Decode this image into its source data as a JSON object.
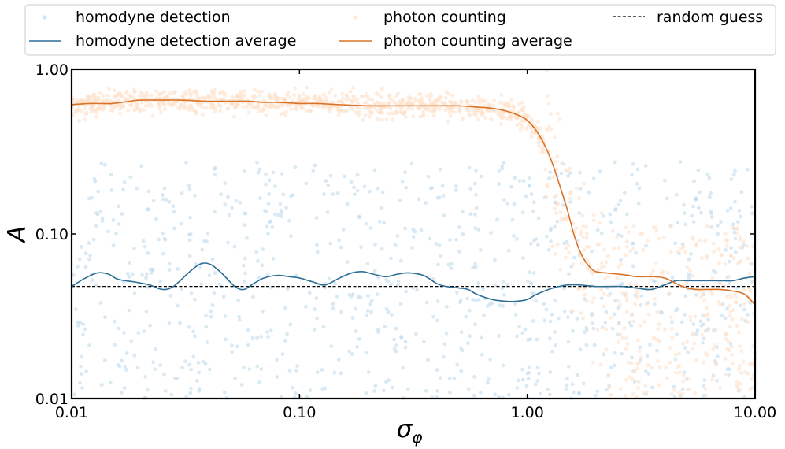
{
  "chart_data": {
    "type": "scatter",
    "xlabel": "σ",
    "xlabel_subscript": "φ",
    "ylabel": "A",
    "xscale": "log",
    "yscale": "log",
    "xlim": [
      0.01,
      10
    ],
    "ylim": [
      0.01,
      1
    ],
    "xticks": [
      {
        "value": 0.01,
        "label": "0.01"
      },
      {
        "value": 0.1,
        "label": "0.10"
      },
      {
        "value": 1,
        "label": "1.00"
      },
      {
        "value": 10,
        "label": "10.00"
      }
    ],
    "yticks": [
      {
        "value": 0.01,
        "label": "0.01"
      },
      {
        "value": 0.1,
        "label": "0.10"
      },
      {
        "value": 1,
        "label": "1.00"
      }
    ],
    "grid": false,
    "legend_position": "top, outside, 3 columns",
    "legend": [
      {
        "label": "homodyne detection",
        "kind": "scatter",
        "color": "#bcd8ec"
      },
      {
        "label": "photon counting",
        "kind": "scatter",
        "color": "#fde0c8"
      },
      {
        "label": "random guess",
        "kind": "dashed",
        "color": "#000000"
      },
      {
        "label": "homodyne detection average",
        "kind": "line",
        "color": "#2c6e96"
      },
      {
        "label": "photon counting average",
        "kind": "line",
        "color": "#d97327"
      }
    ],
    "series": [
      {
        "name": "homodyne detection average",
        "color": "#2c6e96",
        "x": [
          0.01,
          0.0115,
          0.013,
          0.0145,
          0.016,
          0.019,
          0.022,
          0.025,
          0.028,
          0.033,
          0.037,
          0.041,
          0.046,
          0.052,
          0.057,
          0.063,
          0.07,
          0.08,
          0.09,
          0.1,
          0.115,
          0.13,
          0.15,
          0.17,
          0.19,
          0.21,
          0.24,
          0.27,
          0.3,
          0.35,
          0.4,
          0.44,
          0.5,
          0.55,
          0.6,
          0.7,
          0.8,
          0.9,
          1.0,
          1.1,
          1.3,
          1.5,
          1.7,
          2.0,
          2.3,
          2.6,
          3.0,
          3.5,
          4.0,
          4.5,
          5.0,
          6.0,
          7.0,
          8.0,
          9.0,
          10.0
        ],
        "y": [
          0.048,
          0.054,
          0.058,
          0.057,
          0.053,
          0.051,
          0.049,
          0.046,
          0.048,
          0.059,
          0.066,
          0.065,
          0.057,
          0.048,
          0.046,
          0.05,
          0.054,
          0.056,
          0.055,
          0.054,
          0.051,
          0.049,
          0.054,
          0.058,
          0.059,
          0.057,
          0.055,
          0.057,
          0.058,
          0.056,
          0.05,
          0.048,
          0.047,
          0.046,
          0.043,
          0.04,
          0.039,
          0.039,
          0.04,
          0.043,
          0.047,
          0.049,
          0.049,
          0.048,
          0.048,
          0.048,
          0.047,
          0.046,
          0.049,
          0.052,
          0.052,
          0.052,
          0.052,
          0.052,
          0.054,
          0.055
        ]
      },
      {
        "name": "photon counting average",
        "color": "#d97327",
        "x": [
          0.01,
          0.012,
          0.015,
          0.018,
          0.02,
          0.025,
          0.03,
          0.04,
          0.05,
          0.06,
          0.07,
          0.08,
          0.1,
          0.12,
          0.15,
          0.2,
          0.25,
          0.3,
          0.4,
          0.5,
          0.6,
          0.7,
          0.8,
          0.9,
          1.0,
          1.1,
          1.2,
          1.3,
          1.4,
          1.5,
          1.6,
          1.7,
          1.8,
          1.9,
          2.0,
          2.2,
          2.5,
          2.8,
          3.0,
          3.5,
          4.0,
          4.5,
          5.0,
          5.5,
          6.0,
          7.0,
          8.0,
          9.0,
          10.0
        ],
        "y": [
          0.61,
          0.62,
          0.62,
          0.64,
          0.65,
          0.65,
          0.65,
          0.64,
          0.64,
          0.64,
          0.63,
          0.63,
          0.62,
          0.62,
          0.61,
          0.6,
          0.6,
          0.6,
          0.6,
          0.6,
          0.59,
          0.58,
          0.56,
          0.53,
          0.49,
          0.42,
          0.34,
          0.26,
          0.19,
          0.14,
          0.1,
          0.079,
          0.068,
          0.062,
          0.059,
          0.058,
          0.057,
          0.056,
          0.055,
          0.055,
          0.054,
          0.05,
          0.047,
          0.046,
          0.046,
          0.046,
          0.045,
          0.043,
          0.037
        ]
      },
      {
        "name": "random guess",
        "color": "#000000",
        "style": "dashed",
        "x": [
          0.01,
          10
        ],
        "y": [
          0.048,
          0.048
        ]
      }
    ]
  }
}
